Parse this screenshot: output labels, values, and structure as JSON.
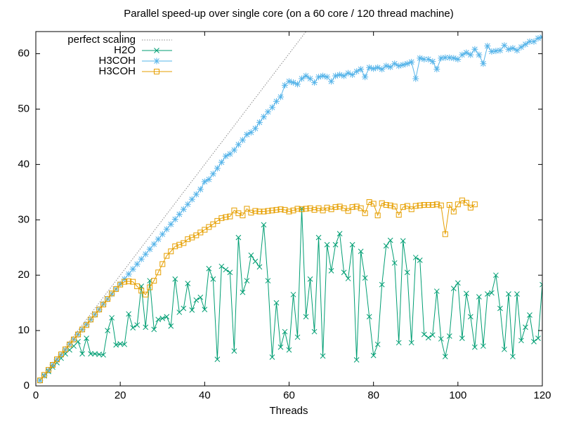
{
  "chart_data": {
    "type": "line",
    "title": "Parallel speed-up over single core (on a 60 core / 120 thread machine)",
    "x_label": "Threads",
    "xlim": [
      0,
      120
    ],
    "xticks": [
      0,
      20,
      40,
      60,
      80,
      100,
      120
    ],
    "ylim": [
      0,
      64
    ],
    "yticks": [
      0,
      10,
      20,
      30,
      40,
      50,
      60
    ],
    "legend": "top-left",
    "series": [
      {
        "name": "perfect scaling",
        "color": "#888888",
        "marker": "none",
        "dash": "dotted",
        "x": [
          1,
          120
        ],
        "values": [
          1,
          120
        ]
      },
      {
        "name": "H2O",
        "color": "#009e73",
        "marker": "cross",
        "x": [
          1,
          2,
          3,
          4,
          5,
          6,
          7,
          8,
          9,
          10,
          11,
          12,
          13,
          14,
          15,
          16,
          17,
          18,
          19,
          20,
          21,
          22,
          23,
          24,
          25,
          26,
          27,
          28,
          29,
          30,
          31,
          32,
          33,
          34,
          35,
          36,
          37,
          38,
          39,
          40,
          41,
          42,
          43,
          44,
          45,
          46,
          47,
          48,
          49,
          50,
          51,
          52,
          53,
          54,
          55,
          56,
          57,
          58,
          59,
          60,
          61,
          62,
          63,
          64,
          65,
          66,
          67,
          68,
          69,
          70,
          71,
          72,
          73,
          74,
          75,
          76,
          77,
          78,
          79,
          80,
          81,
          82,
          83,
          84,
          85,
          86,
          87,
          88,
          89,
          90,
          91,
          92,
          93,
          94,
          95,
          96,
          97,
          98,
          99,
          100,
          101,
          102,
          103,
          104,
          105,
          106,
          107,
          108,
          109,
          110,
          111,
          112,
          113,
          114,
          115,
          116,
          117,
          118,
          119,
          120
        ],
        "values": [
          1,
          1.8,
          2.6,
          3.4,
          4.2,
          5,
          5.8,
          6.5,
          7.2,
          8,
          5.8,
          8.6,
          5.8,
          5.8,
          5.7,
          5.6,
          10,
          12.3,
          7.4,
          7.6,
          7.5,
          13,
          10.5,
          11,
          18,
          10.6,
          19,
          10.2,
          12,
          12.2,
          12.5,
          10.8,
          19.3,
          13.3,
          14,
          18.5,
          13.7,
          15.5,
          16,
          13.8,
          21.2,
          19.3,
          4.8,
          21.6,
          21,
          20.5,
          6.3,
          26.8,
          16.9,
          19,
          23.6,
          22.5,
          21.5,
          29.1,
          19,
          5.2,
          15,
          7,
          9.8,
          6.5,
          16.5,
          8.8,
          32,
          12.5,
          19.3,
          9.8,
          26.8,
          5.4,
          25.5,
          20.8,
          25.5,
          27.5,
          20.5,
          19.4,
          25.5,
          4.7,
          24.3,
          19.5,
          12.5,
          5.5,
          7.5,
          18.3,
          25.3,
          26.3,
          22.2,
          7.8,
          26.2,
          20.5,
          7.8,
          23.2,
          22.7,
          9.3,
          8.7,
          9.2,
          17.1,
          8.5,
          5.3,
          9,
          17.6,
          18.6,
          8.6,
          16.7,
          12.5,
          7,
          16.1,
          7.2,
          16.6,
          16.8,
          20,
          14,
          6.6,
          16.6,
          5.3,
          16.6,
          8.2,
          10.6,
          12.8,
          8,
          8.6,
          18.3
        ]
      },
      {
        "name": "H3COH",
        "color": "#56b4e9",
        "marker": "star",
        "x": [
          1,
          2,
          3,
          4,
          5,
          6,
          7,
          8,
          9,
          10,
          11,
          12,
          13,
          14,
          15,
          16,
          17,
          18,
          19,
          20,
          21,
          22,
          23,
          24,
          25,
          26,
          27,
          28,
          29,
          30,
          31,
          32,
          33,
          34,
          35,
          36,
          37,
          38,
          39,
          40,
          41,
          42,
          43,
          44,
          45,
          46,
          47,
          48,
          49,
          50,
          51,
          52,
          53,
          54,
          55,
          56,
          57,
          58,
          59,
          60,
          61,
          62,
          63,
          64,
          65,
          66,
          67,
          68,
          69,
          70,
          71,
          72,
          73,
          74,
          75,
          76,
          77,
          78,
          79,
          80,
          81,
          82,
          83,
          84,
          85,
          86,
          87,
          88,
          89,
          90,
          91,
          92,
          93,
          94,
          95,
          96,
          97,
          98,
          99,
          100,
          101,
          102,
          103,
          104,
          105,
          106,
          107,
          108,
          109,
          110,
          111,
          112,
          113,
          114,
          115,
          116,
          117,
          118,
          119,
          120
        ],
        "values": [
          1,
          1.9,
          2.8,
          3.8,
          4.7,
          5.6,
          6.5,
          7.5,
          8.4,
          9.3,
          10.2,
          11.1,
          12,
          12.9,
          13.8,
          14.8,
          15.7,
          16.6,
          17.5,
          18.4,
          19.3,
          20.2,
          21.1,
          22,
          22.9,
          23.8,
          24.7,
          25.6,
          26.5,
          27.4,
          28.3,
          29.2,
          30.1,
          31,
          31.9,
          32.8,
          33.7,
          34.6,
          35.5,
          36.9,
          37.3,
          38.3,
          39.3,
          40.4,
          41.5,
          41.9,
          42.6,
          43.6,
          44.4,
          45.4,
          45.8,
          46.5,
          47.6,
          48.6,
          49.5,
          50.3,
          51.4,
          52.2,
          54.3,
          55,
          54.8,
          54.5,
          55.5,
          56,
          55.5,
          54.8,
          55.8,
          56,
          55.8,
          55,
          56,
          56.2,
          56,
          56.5,
          56.2,
          56.8,
          57.2,
          55.8,
          57.5,
          57.3,
          57.5,
          57.2,
          57.8,
          57.6,
          58.2,
          57.8,
          58,
          58.2,
          58.5,
          55.5,
          59.2,
          59,
          59,
          58.6,
          57.2,
          59.2,
          59.3,
          59.3,
          59.2,
          59,
          59.8,
          60.2,
          59.8,
          60.8,
          59.8,
          58.2,
          61.4,
          60.4,
          60.5,
          60.6,
          61.5,
          60.8,
          61,
          60.6,
          61.2,
          61.7,
          62.2,
          62.2,
          62.8,
          63
        ]
      },
      {
        "name": "H3COH",
        "color": "#e69f00",
        "marker": "square",
        "x": [
          1,
          2,
          3,
          4,
          5,
          6,
          7,
          8,
          9,
          10,
          11,
          12,
          13,
          14,
          15,
          16,
          17,
          18,
          19,
          20,
          21,
          22,
          23,
          24,
          25,
          26,
          27,
          28,
          29,
          30,
          31,
          32,
          33,
          34,
          35,
          36,
          37,
          38,
          39,
          40,
          41,
          42,
          43,
          44,
          45,
          46,
          47,
          48,
          49,
          50,
          51,
          52,
          53,
          54,
          55,
          56,
          57,
          58,
          59,
          60,
          61,
          62,
          63,
          64,
          65,
          66,
          67,
          68,
          69,
          70,
          71,
          72,
          73,
          74,
          75,
          76,
          77,
          78,
          79,
          80,
          81,
          82,
          83,
          84,
          85,
          86,
          87,
          88,
          89,
          90,
          91,
          92,
          93,
          94,
          95,
          96,
          97,
          98,
          99,
          100,
          101,
          102,
          103,
          104
        ],
        "values": [
          1,
          2,
          2.9,
          3.8,
          4.8,
          5.7,
          6.6,
          7.5,
          8.4,
          9.3,
          10.2,
          11,
          12,
          12.9,
          13.8,
          14.7,
          15.7,
          16.7,
          17.5,
          18.3,
          18.8,
          18.9,
          18.8,
          18,
          17.2,
          16.5,
          17.8,
          19,
          20.5,
          22,
          23.5,
          24.3,
          25.2,
          25.5,
          25.8,
          26.5,
          26.8,
          27.2,
          27.7,
          28.2,
          28.7,
          29.2,
          29.8,
          30.3,
          30.5,
          30.6,
          31.7,
          31.2,
          30.8,
          32,
          31.3,
          31.6,
          31.5,
          31.5,
          31.6,
          31.7,
          31.8,
          31.9,
          31.8,
          31.5,
          31.7,
          32,
          31.9,
          32,
          32.1,
          31.8,
          32.1,
          31.7,
          32.2,
          31.9,
          32.3,
          32.4,
          32.1,
          31.6,
          32.3,
          32.4,
          32.1,
          31.2,
          33.2,
          32.9,
          30.8,
          33,
          32.7,
          32.6,
          32.4,
          30.9,
          32.3,
          32.5,
          31.9,
          32.5,
          32.6,
          32.7,
          32.7,
          32.7,
          32.8,
          32.6,
          27.4,
          32.7,
          31.5,
          32.8,
          33.5,
          33.1,
          32.2,
          32.8
        ]
      }
    ]
  }
}
